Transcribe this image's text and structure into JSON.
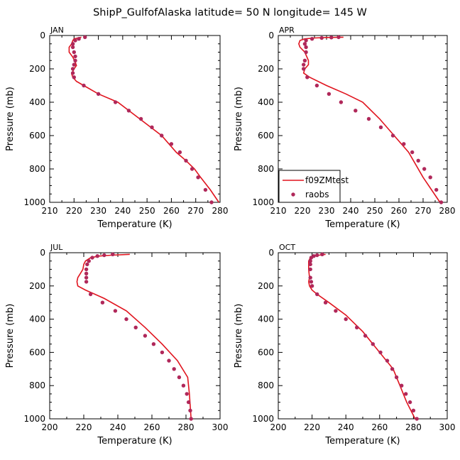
{
  "title": "ShipP_GulfofAlaska  latitude= 50 N longitude= 145 W",
  "colors": {
    "model": "#e0141e",
    "obs": "#b0285a",
    "axis": "#000000"
  },
  "legend": {
    "model_label": "f09ZMtest",
    "obs_label": "raobs"
  },
  "chart_data": [
    {
      "type": "line",
      "panel": "JAN",
      "xlabel": "Temperature (K)",
      "ylabel": "Pressure (mb)",
      "xlim": [
        210,
        280
      ],
      "ylim": [
        1000,
        0
      ],
      "xticks": [
        210,
        220,
        230,
        240,
        250,
        260,
        270,
        280
      ],
      "yticks": [
        0,
        200,
        400,
        600,
        800,
        1000
      ],
      "legend": false,
      "series": [
        {
          "name": "f09ZMtest",
          "kind": "line",
          "T": [
            223,
            220,
            219.5,
            219,
            218,
            218,
            219.5,
            220.5,
            221,
            220,
            219,
            219.5,
            221,
            224,
            230,
            238,
            247,
            256,
            262,
            266,
            269.5,
            272,
            276,
            279.5
          ],
          "P": [
            10,
            20,
            30,
            50,
            70,
            100,
            130,
            160,
            180,
            200,
            230,
            250,
            275,
            300,
            350,
            400,
            500,
            600,
            700,
            750,
            800,
            850,
            925,
            1000
          ]
        },
        {
          "name": "raobs",
          "kind": "points",
          "T": [
            224.5,
            222,
            220.5,
            219.5,
            219.5,
            220,
            220.5,
            220.5,
            220,
            219.5,
            219.5,
            220,
            224,
            230,
            237,
            242.5,
            247.5,
            252,
            256,
            260,
            263.5,
            266,
            268.5,
            271,
            274,
            276.5
          ],
          "P": [
            10,
            20,
            30,
            50,
            70,
            100,
            125,
            150,
            175,
            200,
            225,
            250,
            300,
            350,
            400,
            450,
            500,
            550,
            600,
            650,
            700,
            750,
            800,
            850,
            925,
            1000
          ]
        }
      ]
    },
    {
      "type": "line",
      "panel": "APR",
      "xlabel": "Temperature (K)",
      "ylabel": "Pressure (mb)",
      "xlim": [
        210,
        280
      ],
      "ylim": [
        1000,
        0
      ],
      "xticks": [
        210,
        220,
        230,
        240,
        250,
        260,
        270,
        280
      ],
      "yticks": [
        0,
        200,
        400,
        600,
        800,
        1000
      ],
      "legend": true,
      "series": [
        {
          "name": "f09ZMtest",
          "kind": "line",
          "T": [
            237,
            230,
            225,
            221,
            219,
            218.5,
            219,
            221,
            222.5,
            222.5,
            221,
            220.5,
            223,
            230,
            238,
            245,
            252,
            258,
            264,
            270,
            277
          ],
          "P": [
            10,
            12,
            15,
            20,
            30,
            50,
            70,
            100,
            150,
            175,
            200,
            225,
            250,
            300,
            350,
            400,
            500,
            600,
            700,
            850,
            1000
          ]
        },
        {
          "name": "raobs",
          "kind": "points",
          "T": [
            235,
            232,
            228,
            224,
            221.5,
            221,
            221.5,
            221.5,
            221,
            220.5,
            220.5,
            222,
            226,
            231,
            236,
            242,
            247.5,
            252.5,
            257.5,
            262,
            265.5,
            268,
            270.5,
            273,
            275.5,
            277.5
          ],
          "P": [
            10,
            12,
            15,
            20,
            30,
            50,
            70,
            100,
            150,
            175,
            200,
            250,
            300,
            350,
            400,
            450,
            500,
            550,
            600,
            650,
            700,
            750,
            800,
            850,
            925,
            1000
          ]
        }
      ]
    },
    {
      "type": "line",
      "panel": "JUL",
      "xlabel": "Temperature (K)",
      "ylabel": "Pressure (mb)",
      "xlim": [
        200,
        300
      ],
      "ylim": [
        1000,
        0
      ],
      "xticks": [
        200,
        220,
        240,
        260,
        280,
        300
      ],
      "yticks": [
        0,
        200,
        400,
        600,
        800,
        1000
      ],
      "legend": false,
      "series": [
        {
          "name": "f09ZMtest",
          "kind": "line",
          "T": [
            247,
            236,
            229,
            224,
            221,
            220,
            219.5,
            218,
            216.5,
            216,
            216.5,
            221,
            232,
            245,
            256,
            266,
            275,
            281,
            282,
            283
          ],
          "P": [
            10,
            15,
            20,
            30,
            50,
            70,
            100,
            125,
            150,
            175,
            200,
            225,
            275,
            350,
            450,
            550,
            650,
            750,
            850,
            1000
          ]
        },
        {
          "name": "raobs",
          "kind": "points",
          "T": [
            237,
            232,
            228,
            225,
            223,
            222,
            221.5,
            221.5,
            221.5,
            221.5,
            224,
            231,
            238.5,
            245,
            250.5,
            256,
            261,
            266,
            270,
            273,
            276,
            278.5,
            280.5,
            281.5,
            282.5,
            283
          ],
          "P": [
            10,
            15,
            20,
            30,
            50,
            70,
            100,
            125,
            150,
            175,
            250,
            300,
            350,
            400,
            450,
            500,
            550,
            600,
            650,
            700,
            750,
            800,
            850,
            900,
            950,
            1000
          ]
        }
      ]
    },
    {
      "type": "line",
      "panel": "OCT",
      "xlabel": "Temperature (K)",
      "ylabel": "Pressure (mb)",
      "xlim": [
        200,
        300
      ],
      "ylim": [
        1000,
        0
      ],
      "xticks": [
        200,
        220,
        240,
        260,
        280,
        300
      ],
      "yticks": [
        0,
        200,
        400,
        600,
        800,
        1000
      ],
      "legend": false,
      "series": [
        {
          "name": "f09ZMtest",
          "kind": "line",
          "T": [
            228,
            224,
            221,
            219,
            218,
            218,
            218.5,
            218,
            218.5,
            220,
            223,
            230,
            240,
            250,
            258,
            264,
            268,
            272,
            276,
            281
          ],
          "P": [
            10,
            15,
            20,
            30,
            50,
            100,
            150,
            175,
            200,
            225,
            250,
            300,
            375,
            475,
            575,
            650,
            700,
            800,
            900,
            1000
          ]
        },
        {
          "name": "raobs",
          "kind": "points",
          "T": [
            226,
            223,
            221,
            219.5,
            219,
            219,
            219,
            219,
            219.5,
            220,
            223,
            228,
            234,
            240,
            246.5,
            251.5,
            256,
            260.5,
            264.5,
            267.5,
            270,
            273,
            275.5,
            278,
            280,
            282
          ],
          "P": [
            10,
            15,
            20,
            30,
            50,
            70,
            100,
            150,
            175,
            200,
            250,
            300,
            350,
            400,
            450,
            500,
            550,
            600,
            650,
            700,
            750,
            800,
            850,
            900,
            950,
            1000
          ]
        }
      ]
    }
  ]
}
